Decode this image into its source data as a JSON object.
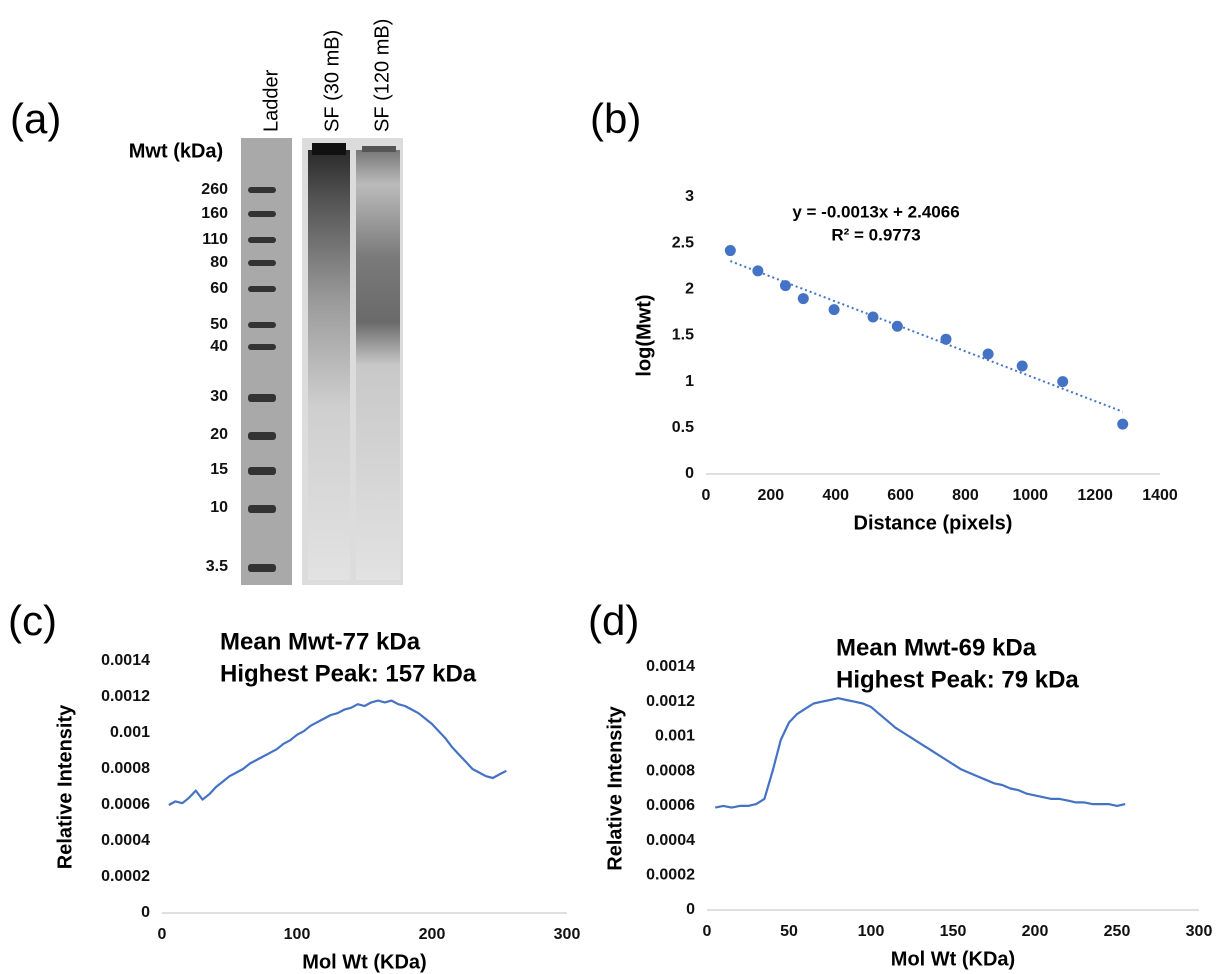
{
  "gel": {
    "panel_label": "(a)",
    "lanes": [
      "Ladder",
      "SF (30 mB)",
      "SF (120 mB)"
    ],
    "mw_label": "Mwt (kDa)",
    "ladder": [
      260,
      160,
      110,
      80,
      60,
      50,
      40,
      30,
      20,
      15,
      10,
      3.5
    ]
  },
  "chart_data": [
    {
      "type": "scatter",
      "panel_label": "(b)",
      "annotations": [
        "y = -0.0013x + 2.4066",
        "R² = 0.9773"
      ],
      "xlabel": "Distance (pixels)",
      "ylabel": "log(Mwt)",
      "color": "#4472c4",
      "trendline": true,
      "x": [
        75,
        160,
        245,
        300,
        395,
        515,
        590,
        740,
        870,
        975,
        1100,
        1285
      ],
      "values": [
        2.42,
        2.2,
        2.04,
        1.9,
        1.78,
        1.7,
        1.6,
        1.46,
        1.3,
        1.17,
        1.0,
        0.54
      ],
      "xlim": [
        0,
        1400
      ],
      "xticks": [
        0,
        200,
        400,
        600,
        800,
        1000,
        1200,
        1400
      ],
      "ylim": [
        0,
        3
      ],
      "yticks": [
        0,
        0.5,
        1,
        1.5,
        2,
        2.5,
        3
      ]
    },
    {
      "type": "line",
      "panel_label": "(c)",
      "title": "Mean Mwt-77 kDa",
      "subtitle": "Highest Peak: 157 kDa",
      "xlabel": "Mol Wt (KDa)",
      "ylabel": "Relative Intensity",
      "color": "#4472c4",
      "x": [
        5,
        10,
        15,
        20,
        25,
        30,
        35,
        40,
        45,
        50,
        55,
        60,
        65,
        70,
        75,
        80,
        85,
        90,
        95,
        100,
        105,
        110,
        115,
        120,
        125,
        130,
        135,
        140,
        145,
        150,
        155,
        160,
        165,
        170,
        175,
        180,
        185,
        190,
        195,
        200,
        205,
        210,
        215,
        220,
        225,
        230,
        235,
        240,
        245,
        250,
        255
      ],
      "values": [
        0.0006,
        0.00062,
        0.00061,
        0.00064,
        0.00068,
        0.00063,
        0.00066,
        0.0007,
        0.00073,
        0.00076,
        0.00078,
        0.0008,
        0.00083,
        0.00085,
        0.00087,
        0.00089,
        0.00091,
        0.00094,
        0.00096,
        0.00099,
        0.00101,
        0.00104,
        0.00106,
        0.00108,
        0.0011,
        0.00111,
        0.00113,
        0.00114,
        0.00116,
        0.00115,
        0.00117,
        0.00118,
        0.00117,
        0.00118,
        0.00116,
        0.00115,
        0.00113,
        0.00111,
        0.00108,
        0.00105,
        0.00101,
        0.00097,
        0.00092,
        0.00088,
        0.00084,
        0.0008,
        0.00078,
        0.00076,
        0.00075,
        0.00077,
        0.00079
      ],
      "xlim": [
        0,
        300
      ],
      "xticks": [
        0,
        100,
        200,
        300
      ],
      "ylim": [
        0,
        0.0014
      ],
      "yticks": [
        0,
        0.0002,
        0.0004,
        0.0006,
        0.0008,
        0.001,
        0.0012,
        0.0014
      ]
    },
    {
      "type": "line",
      "panel_label": "(d)",
      "title": "Mean Mwt-69 kDa",
      "subtitle": "Highest Peak: 79 kDa",
      "xlabel": "Mol Wt (KDa)",
      "ylabel": "Relative Intensity",
      "color": "#4472c4",
      "x": [
        5,
        10,
        15,
        20,
        25,
        30,
        35,
        40,
        45,
        50,
        55,
        60,
        65,
        70,
        75,
        80,
        85,
        90,
        95,
        100,
        105,
        110,
        115,
        120,
        125,
        130,
        135,
        140,
        145,
        150,
        155,
        160,
        165,
        170,
        175,
        180,
        185,
        190,
        195,
        200,
        205,
        210,
        215,
        220,
        225,
        230,
        235,
        240,
        245,
        250,
        255
      ],
      "values": [
        0.00059,
        0.0006,
        0.00059,
        0.0006,
        0.0006,
        0.00061,
        0.00064,
        0.0008,
        0.00098,
        0.00108,
        0.00113,
        0.00116,
        0.00119,
        0.0012,
        0.00121,
        0.00122,
        0.00121,
        0.0012,
        0.00119,
        0.00117,
        0.00113,
        0.00109,
        0.00105,
        0.00102,
        0.00099,
        0.00096,
        0.00093,
        0.0009,
        0.00087,
        0.00084,
        0.00081,
        0.00079,
        0.00077,
        0.00075,
        0.00073,
        0.00072,
        0.0007,
        0.00069,
        0.00067,
        0.00066,
        0.00065,
        0.00064,
        0.00064,
        0.00063,
        0.00062,
        0.00062,
        0.00061,
        0.00061,
        0.00061,
        0.0006,
        0.00061
      ],
      "xlim": [
        0,
        300
      ],
      "xticks": [
        0,
        50,
        100,
        150,
        200,
        250,
        300
      ],
      "ylim": [
        0,
        0.0014
      ],
      "yticks": [
        0,
        0.0002,
        0.0004,
        0.0006,
        0.0008,
        0.001,
        0.0012,
        0.0014
      ]
    }
  ]
}
